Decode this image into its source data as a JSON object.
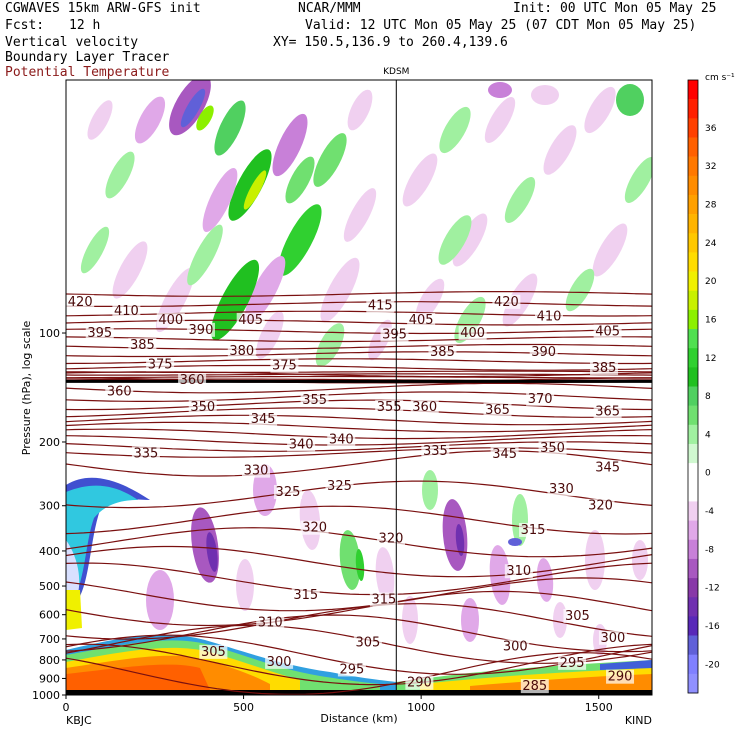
{
  "header": {
    "model": "CGWAVES 15km ARW-GFS init",
    "org": "NCAR/MMM",
    "init": "Init: 00 UTC Mon 05 May 25",
    "fcst_label": "Fcst:",
    "fcst_value": "12 h",
    "valid": "Valid: 12 UTC Mon 05 May 25 (07 CDT Mon 05 May 25)",
    "field1": "Vertical velocity",
    "field2": "Boundary Layer Tracer",
    "field3": "Potential Temperature",
    "xy": "XY= 150.5,136.9 to 260.4,139.6"
  },
  "colors": {
    "theta_line": "#7a1010",
    "theta_label": "#4a0a0a",
    "field3_text": "#8b1a1a"
  },
  "chart_data": {
    "type": "heatmap",
    "xlabel": "Distance (km)",
    "ylabel": "Pressure (hPa), log scale",
    "x_ticks": [
      "0",
      "500",
      "1000",
      "1500"
    ],
    "y_ticks": [
      "100",
      "200",
      "300",
      "400",
      "500",
      "600",
      "700",
      "800",
      "900",
      "1000"
    ],
    "xlim": [
      0,
      1650
    ],
    "ylim": [
      1000,
      20
    ],
    "y_scale": "log",
    "left_station": "KBJC",
    "right_station": "KIND",
    "mid_station": "KDSM",
    "mid_station_km": 930,
    "colorbar": {
      "unit": "cm s⁻¹",
      "ticks": [
        "36",
        "32",
        "28",
        "24",
        "20",
        "16",
        "12",
        "8",
        "4",
        "0",
        "-4",
        "-8",
        "-12",
        "-16",
        "-20"
      ],
      "levels": [
        40,
        38,
        36,
        34,
        32,
        30,
        28,
        26,
        24,
        22,
        20,
        18,
        16,
        14,
        12,
        10,
        8,
        6,
        4,
        2,
        0,
        -2,
        -4,
        -6,
        -8,
        -10,
        -12,
        -14,
        -16,
        -18,
        -20,
        -22
      ],
      "colors": [
        "#ff0000",
        "#ff2000",
        "#ff4000",
        "#ff6000",
        "#ff7800",
        "#ff8c00",
        "#ffa000",
        "#ffb400",
        "#ffc800",
        "#ffdc00",
        "#f0f000",
        "#c8f000",
        "#8cf000",
        "#50e050",
        "#30d030",
        "#20c020",
        "#50d060",
        "#70e070",
        "#a0f0a0",
        "#d0f8d0",
        "#ffffff",
        "#ffffff",
        "#f0d0f0",
        "#e0a8e8",
        "#c880d8",
        "#a858c0",
        "#8838a8",
        "#7030b0",
        "#5828b8",
        "#6060d8",
        "#8080ff",
        "#9090ff"
      ]
    },
    "theta_labels": [
      {
        "v": 420,
        "x": 40,
        "p": 82
      },
      {
        "v": 410,
        "x": 170,
        "p": 87
      },
      {
        "v": 400,
        "x": 295,
        "p": 92
      },
      {
        "v": 395,
        "x": 95,
        "p": 100
      },
      {
        "v": 385,
        "x": 215,
        "p": 108
      },
      {
        "v": 390,
        "x": 380,
        "p": 98
      },
      {
        "v": 375,
        "x": 265,
        "p": 122
      },
      {
        "v": 380,
        "x": 495,
        "p": 112
      },
      {
        "v": 405,
        "x": 520,
        "p": 92
      },
      {
        "v": 360,
        "x": 355,
        "p": 135
      },
      {
        "v": 375,
        "x": 615,
        "p": 123
      },
      {
        "v": 415,
        "x": 885,
        "p": 84
      },
      {
        "v": 405,
        "x": 1000,
        "p": 92
      },
      {
        "v": 395,
        "x": 925,
        "p": 101
      },
      {
        "v": 400,
        "x": 1145,
        "p": 100
      },
      {
        "v": 420,
        "x": 1240,
        "p": 82
      },
      {
        "v": 410,
        "x": 1360,
        "p": 90
      },
      {
        "v": 405,
        "x": 1525,
        "p": 99
      },
      {
        "v": 385,
        "x": 1060,
        "p": 113
      },
      {
        "v": 390,
        "x": 1345,
        "p": 113
      },
      {
        "v": 385,
        "x": 1515,
        "p": 125
      },
      {
        "v": 360,
        "x": 150,
        "p": 145
      },
      {
        "v": 350,
        "x": 385,
        "p": 160
      },
      {
        "v": 345,
        "x": 555,
        "p": 173
      },
      {
        "v": 355,
        "x": 700,
        "p": 153
      },
      {
        "v": 355,
        "x": 910,
        "p": 160
      },
      {
        "v": 360,
        "x": 1010,
        "p": 160
      },
      {
        "v": 365,
        "x": 1215,
        "p": 163
      },
      {
        "v": 370,
        "x": 1335,
        "p": 152
      },
      {
        "v": 365,
        "x": 1525,
        "p": 165
      },
      {
        "v": 335,
        "x": 225,
        "p": 215
      },
      {
        "v": 340,
        "x": 662,
        "p": 203
      },
      {
        "v": 340,
        "x": 775,
        "p": 197
      },
      {
        "v": 335,
        "x": 1040,
        "p": 212
      },
      {
        "v": 345,
        "x": 1235,
        "p": 216
      },
      {
        "v": 350,
        "x": 1370,
        "p": 208
      },
      {
        "v": 330,
        "x": 535,
        "p": 240
      },
      {
        "v": 325,
        "x": 625,
        "p": 275
      },
      {
        "v": 325,
        "x": 770,
        "p": 265
      },
      {
        "v": 345,
        "x": 1525,
        "p": 235
      },
      {
        "v": 330,
        "x": 1395,
        "p": 270
      },
      {
        "v": 320,
        "x": 1505,
        "p": 300
      },
      {
        "v": 320,
        "x": 700,
        "p": 345
      },
      {
        "v": 320,
        "x": 915,
        "p": 370
      },
      {
        "v": 315,
        "x": 1315,
        "p": 350
      },
      {
        "v": 310,
        "x": 1275,
        "p": 455
      },
      {
        "v": 315,
        "x": 675,
        "p": 530
      },
      {
        "v": 315,
        "x": 895,
        "p": 545
      },
      {
        "v": 305,
        "x": 1440,
        "p": 605
      },
      {
        "v": 310,
        "x": 575,
        "p": 630
      },
      {
        "v": 300,
        "x": 1540,
        "p": 695
      },
      {
        "v": 305,
        "x": 415,
        "p": 760
      },
      {
        "v": 305,
        "x": 850,
        "p": 715
      },
      {
        "v": 300,
        "x": 1265,
        "p": 735
      },
      {
        "v": 300,
        "x": 600,
        "p": 810
      },
      {
        "v": 295,
        "x": 805,
        "p": 850
      },
      {
        "v": 295,
        "x": 1425,
        "p": 815
      },
      {
        "v": 290,
        "x": 1560,
        "p": 890
      },
      {
        "v": 290,
        "x": 995,
        "p": 925
      },
      {
        "v": 285,
        "x": 1320,
        "p": 945
      }
    ]
  }
}
